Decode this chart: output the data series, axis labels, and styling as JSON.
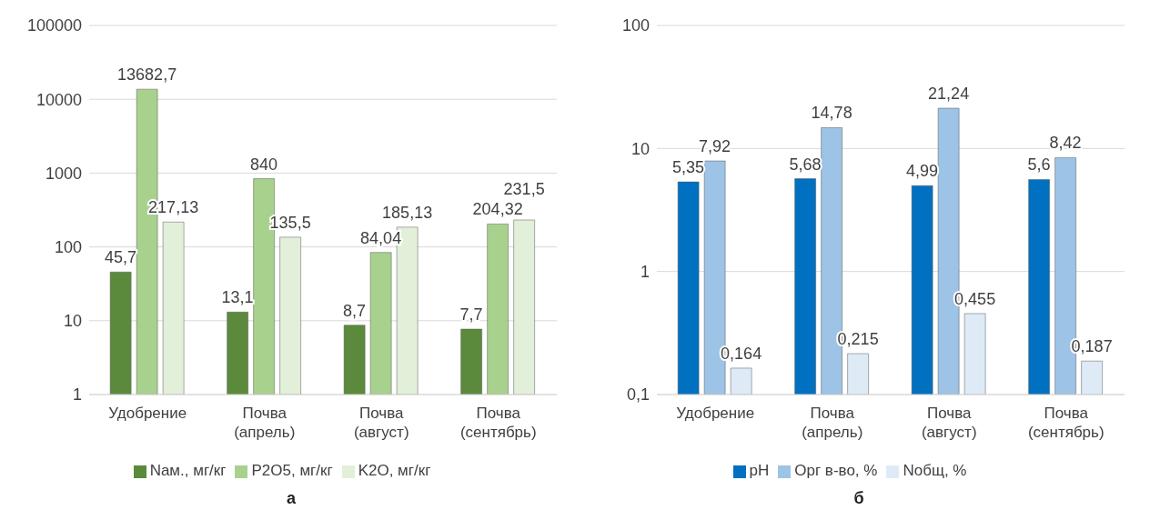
{
  "chart_data": [
    {
      "type": "bar",
      "categories": [
        "Удобрение",
        "Почва (апрель)",
        "Почва (август)",
        "Почва (сентябрь)"
      ],
      "log": true,
      "ylim": [
        1,
        100000
      ],
      "yticks": [
        1,
        10,
        100,
        1000,
        10000,
        100000
      ],
      "grid": "y",
      "legend": "bottom",
      "annotations": [
        "а"
      ],
      "series": [
        {
          "name": "Nам., мг/кг",
          "color": "#5b8a3c",
          "values": [
            45.7,
            13.1,
            8.7,
            7.7
          ],
          "value_labels": [
            "45,7",
            "13,1",
            "8,7",
            "7,7"
          ]
        },
        {
          "name": "P2O5, мг/кг",
          "color": "#a9d18e",
          "values": [
            13682.7,
            840,
            84.04,
            204.32
          ],
          "value_labels": [
            "13682,7",
            "840",
            "84,04",
            "204,32"
          ]
        },
        {
          "name": "K2O, мг/кг",
          "color": "#e2f0d9",
          "values": [
            217.13,
            135.5,
            185.13,
            231.5
          ],
          "value_labels": [
            "217,13",
            "135,5",
            "185,13",
            "231,5"
          ]
        }
      ]
    },
    {
      "type": "bar",
      "categories": [
        "Удобрение",
        "Почва (апрель)",
        "Почва (август)",
        "Почва (сентябрь)"
      ],
      "log": true,
      "ylim": [
        0.1,
        100
      ],
      "yticks": [
        {
          "value": 0.1,
          "label": "0,1"
        },
        1,
        10,
        100
      ],
      "grid": "y",
      "legend": "bottom",
      "annotations": [
        "б"
      ],
      "series": [
        {
          "name": "pH",
          "color": "#0070c0",
          "values": [
            5.35,
            5.68,
            4.99,
            5.6
          ],
          "value_labels": [
            "5,35",
            "5,68",
            "4,99",
            "5,6"
          ]
        },
        {
          "name": "Орг в-во, %",
          "color": "#9dc3e6",
          "values": [
            7.92,
            14.78,
            21.24,
            8.42
          ],
          "value_labels": [
            "7,92",
            "14,78",
            "21,24",
            "8,42"
          ]
        },
        {
          "name": "Nобщ, %",
          "color": "#deebf7",
          "values": [
            0.164,
            0.215,
            0.455,
            0.187
          ],
          "value_labels": [
            "0,164",
            "0,215",
            "0,455",
            "0,187"
          ]
        }
      ]
    }
  ]
}
